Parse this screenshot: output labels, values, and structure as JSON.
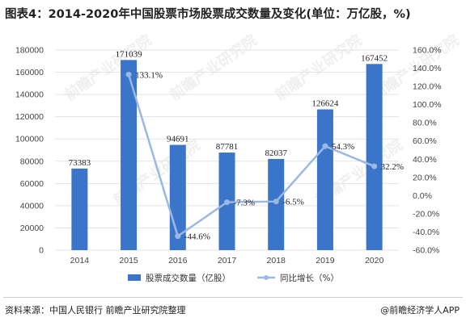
{
  "title": "图表4：2014-2020年中国股票市场股票成交数量及变化(单位：万亿股，%)",
  "footer": {
    "source": "资料来源：中国人民银行 前瞻产业研究院整理",
    "brand": "@前瞻经济学人APP"
  },
  "watermark": "前瞻产业研究院",
  "colors": {
    "bar": "#3b75c9",
    "line": "#9bb8e3",
    "grid": "#e3e3e3"
  },
  "chart_data": {
    "type": "bar",
    "categories": [
      "2014",
      "2015",
      "2016",
      "2017",
      "2018",
      "2019",
      "2020"
    ],
    "series": [
      {
        "name": "股票成交数量（亿股）",
        "type": "bar",
        "axis": "left",
        "values": [
          73383,
          171039,
          94691,
          87781,
          82037,
          126624,
          167452
        ],
        "labels": [
          "73383",
          "171039",
          "94691",
          "87781",
          "82037",
          "126624",
          "167452"
        ]
      },
      {
        "name": "同比增长（%）",
        "type": "line",
        "axis": "right",
        "values": [
          null,
          133.1,
          -44.6,
          -7.3,
          -6.5,
          54.3,
          32.2
        ],
        "labels": [
          "",
          "133.1%",
          "-44.6%",
          "-7.3%",
          "-6.5%",
          "54.3%",
          "32.2%"
        ]
      }
    ],
    "y_left": {
      "range": [
        0,
        180000
      ],
      "ticks": [
        "0",
        "20000",
        "40000",
        "60000",
        "80000",
        "100000",
        "120000",
        "140000",
        "160000",
        "180000"
      ]
    },
    "y_right": {
      "range": [
        -60,
        160
      ],
      "ticks": [
        "-60.0%",
        "-40.0%",
        "-20.0%",
        "0.0%",
        "20.0%",
        "40.0%",
        "60.0%",
        "80.0%",
        "100.0%",
        "120.0%",
        "140.0%",
        "160.0%"
      ]
    },
    "grid": true,
    "legend": "bottom"
  }
}
